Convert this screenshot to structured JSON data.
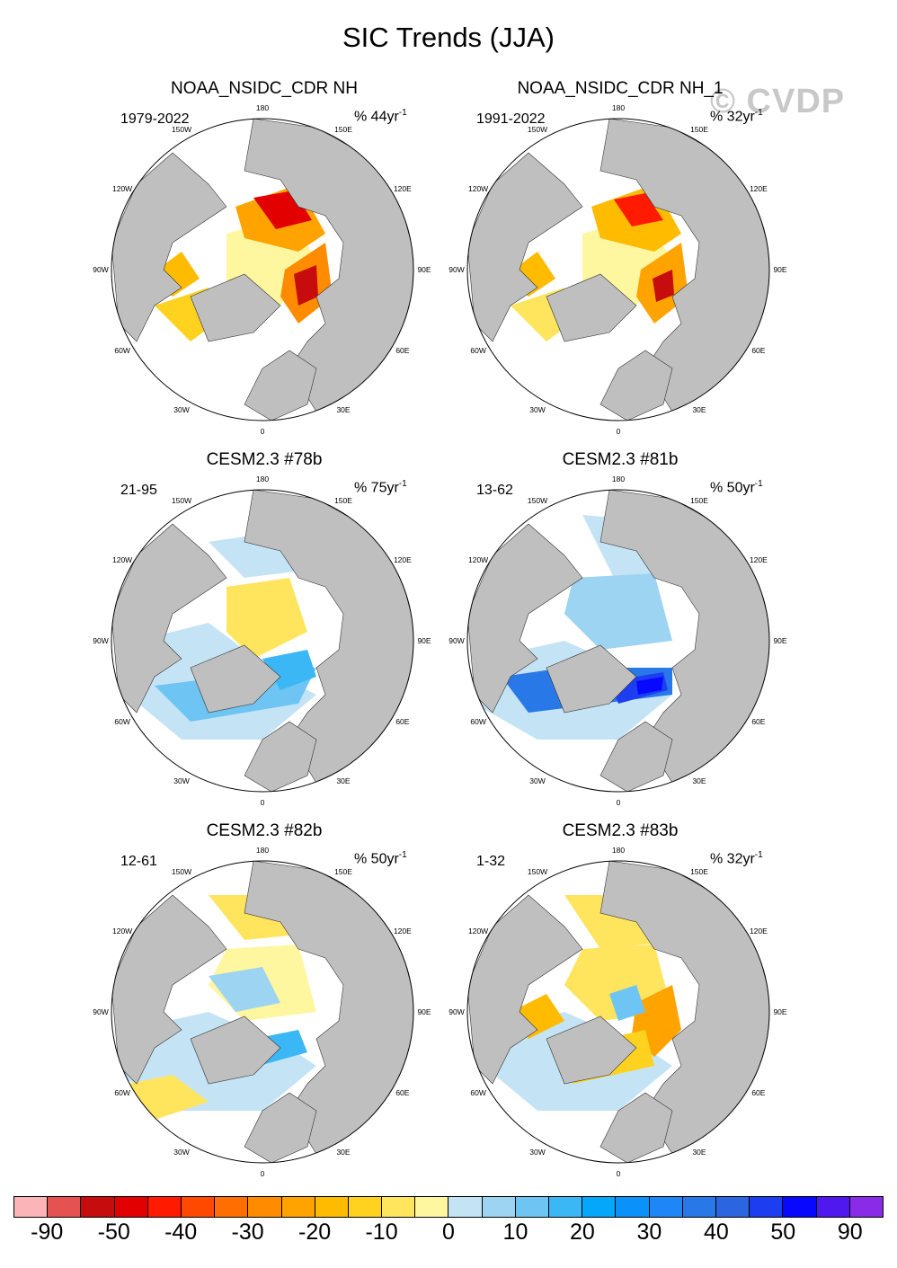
{
  "title": "SIC Trends (JJA)",
  "watermark": "© CVDP",
  "panels": [
    {
      "title": "NOAA_NSIDC_CDR NH",
      "period": "1979-2022",
      "units_prefix": "% 44yr",
      "units_exp": "-1",
      "pattern": "obs1"
    },
    {
      "title": "NOAA_NSIDC_CDR NH_1",
      "period": "1991-2022",
      "units_prefix": "% 32yr",
      "units_exp": "-1",
      "pattern": "obs2"
    },
    {
      "title": "CESM2.3 #78b",
      "period": "21-95",
      "units_prefix": "% 75yr",
      "units_exp": "-1",
      "pattern": "m78"
    },
    {
      "title": "CESM2.3 #81b",
      "period": "13-62",
      "units_prefix": "% 50yr",
      "units_exp": "-1",
      "pattern": "m81"
    },
    {
      "title": "CESM2.3 #82b",
      "period": "12-61",
      "units_prefix": "% 50yr",
      "units_exp": "-1",
      "pattern": "m82"
    },
    {
      "title": "CESM2.3 #83b",
      "period": "1-32",
      "units_prefix": "% 32yr",
      "units_exp": "-1",
      "pattern": "m83"
    }
  ],
  "map_labels": [
    "180",
    "150E",
    "120E",
    "90E",
    "60E",
    "30E",
    "0",
    "30W",
    "60W",
    "90W",
    "120W",
    "150W"
  ],
  "colorbar": {
    "labels": [
      "-90",
      "-50",
      "-40",
      "-30",
      "-20",
      "-10",
      "0",
      "10",
      "20",
      "30",
      "40",
      "50",
      "90"
    ],
    "colors": [
      "#fbb4b8",
      "#e45352",
      "#c60c0c",
      "#e20000",
      "#ff1a00",
      "#ff4800",
      "#ff6e00",
      "#ff8c00",
      "#ffa300",
      "#ffbb00",
      "#ffd21f",
      "#ffe45e",
      "#fff6a0",
      "#c4e4f6",
      "#9cd4f2",
      "#6ec5f3",
      "#3bb7f6",
      "#05a7fa",
      "#0b91fa",
      "#1e86f6",
      "#2878e8",
      "#2b65e0",
      "#1d3ef0",
      "#0808ff",
      "#4e18ef",
      "#8a2be8"
    ]
  },
  "style": {
    "land": "#bfbfbf",
    "ocean": "#ffffff"
  }
}
